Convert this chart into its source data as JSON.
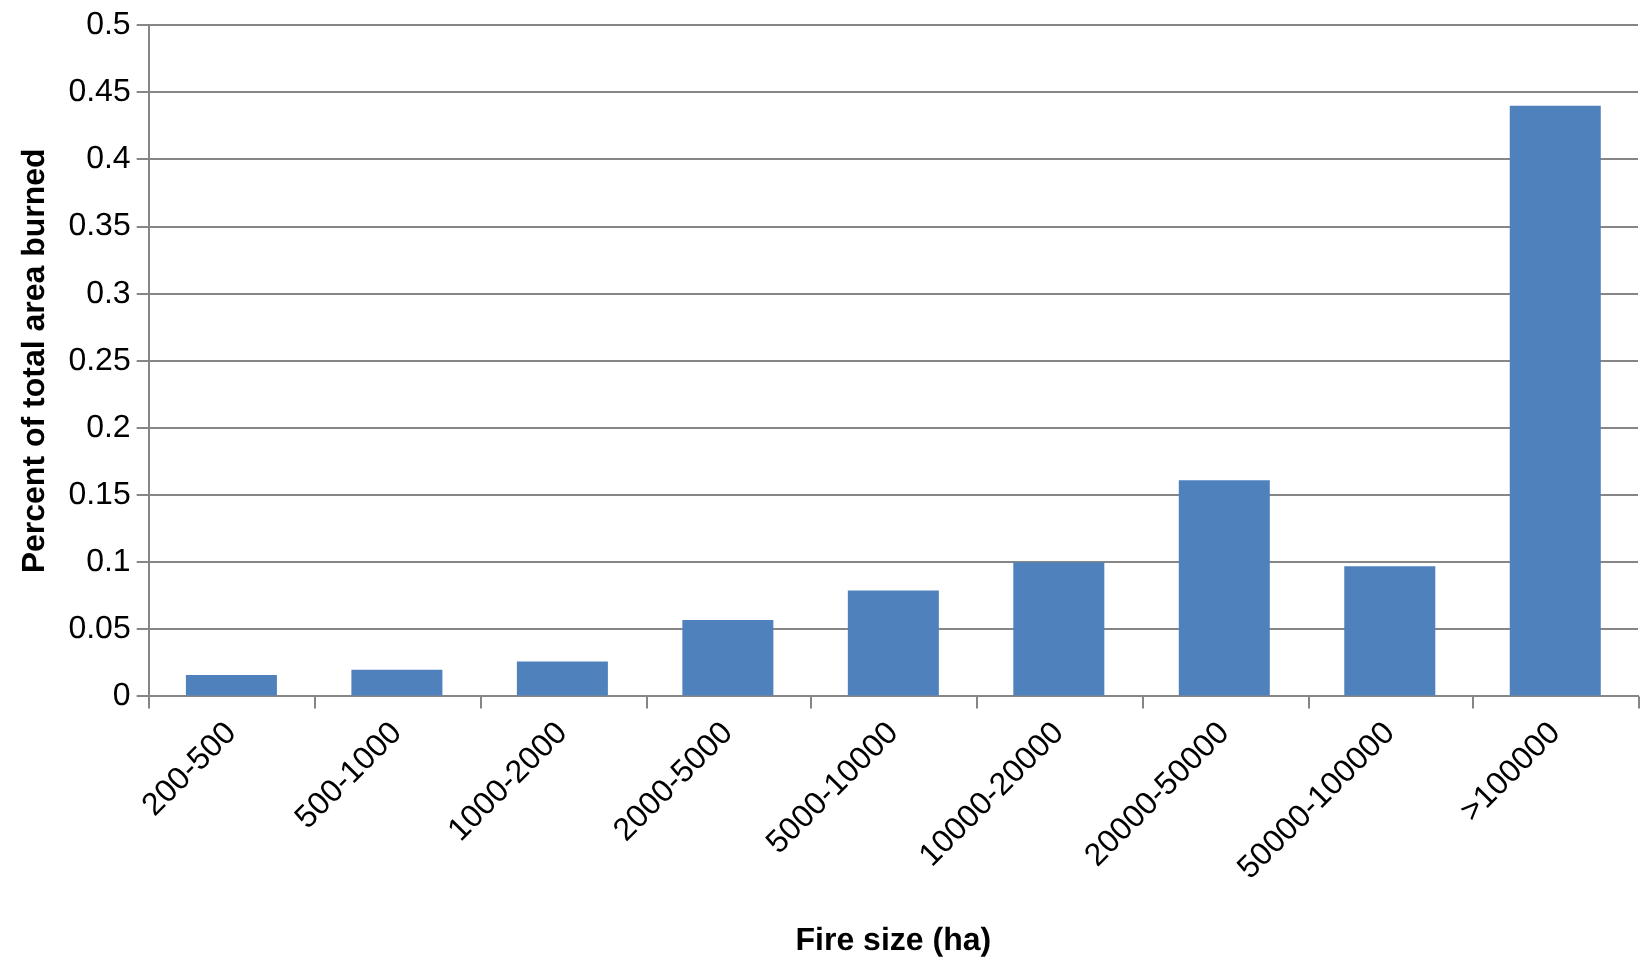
{
  "chart_data": {
    "type": "bar",
    "xlabel": "Fire size (ha)",
    "ylabel": "Percent of total area burned",
    "categories": [
      "200-500",
      "500-1000",
      "1000-2000",
      "2000-5000",
      "5000-10000",
      "10000-20000",
      "20000-50000",
      "50000-100000",
      ">100000"
    ],
    "values": [
      0.016,
      0.02,
      0.026,
      0.057,
      0.079,
      0.1,
      0.161,
      0.097,
      0.44
    ],
    "color": "#4f81bd",
    "ylim": [
      0,
      0.5
    ],
    "yticks": [
      0,
      0.05,
      0.1,
      0.15,
      0.2,
      0.25,
      0.3,
      0.35,
      0.4,
      0.45,
      0.5
    ],
    "grid": "y",
    "legend": false
  }
}
